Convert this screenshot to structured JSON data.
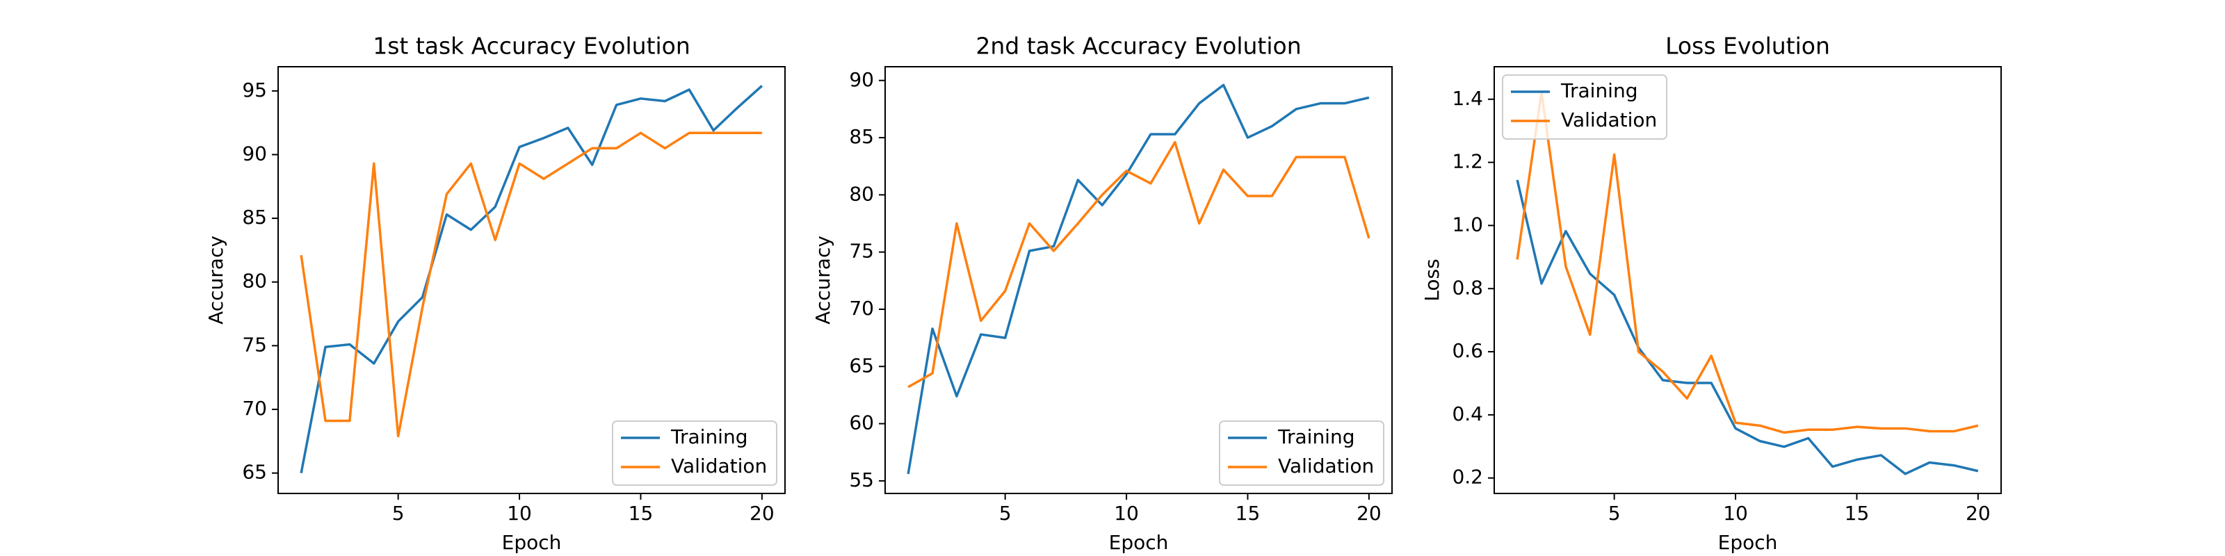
{
  "chart_data": [
    {
      "type": "line",
      "title": "1st task Accuracy Evolution",
      "x_label": "Epoch",
      "y_label": "Accuracy",
      "x": [
        1,
        2,
        3,
        4,
        5,
        6,
        7,
        8,
        9,
        10,
        11,
        12,
        13,
        14,
        15,
        16,
        17,
        18,
        19,
        20
      ],
      "series": [
        {
          "name": "Training",
          "color": "#1f77b4",
          "values": [
            65.0,
            74.9,
            75.1,
            73.6,
            76.9,
            78.8,
            85.3,
            84.1,
            85.9,
            90.6,
            91.3,
            92.1,
            89.2,
            93.9,
            94.4,
            94.2,
            95.1,
            91.9,
            93.7,
            95.4
          ]
        },
        {
          "name": "Validation",
          "color": "#ff7f0e",
          "values": [
            82.1,
            69.1,
            69.1,
            89.3,
            67.9,
            78.0,
            86.9,
            89.3,
            83.3,
            89.3,
            88.1,
            89.3,
            90.5,
            90.5,
            91.7,
            90.5,
            91.7,
            91.7,
            91.7,
            91.7
          ]
        }
      ],
      "xlim": [
        0.05,
        20.95
      ],
      "xticks": [
        5,
        10,
        15,
        20
      ],
      "ylim": [
        63.4,
        96.9
      ],
      "yticks": [
        65,
        70,
        75,
        80,
        85,
        90,
        95
      ],
      "legend": "lower right"
    },
    {
      "type": "line",
      "title": "2nd task Accuracy Evolution",
      "x_label": "Epoch",
      "y_label": "Accuracy",
      "x": [
        1,
        2,
        3,
        4,
        5,
        6,
        7,
        8,
        9,
        10,
        11,
        12,
        13,
        14,
        15,
        16,
        17,
        18,
        19,
        20
      ],
      "series": [
        {
          "name": "Training",
          "color": "#1f77b4",
          "values": [
            55.6,
            68.3,
            62.4,
            67.8,
            67.5,
            75.1,
            75.5,
            81.3,
            79.1,
            81.8,
            85.3,
            85.3,
            88.0,
            89.6,
            85.0,
            86.0,
            87.5,
            88.0,
            88.0,
            88.5
          ]
        },
        {
          "name": "Validation",
          "color": "#ff7f0e",
          "values": [
            63.2,
            64.4,
            77.5,
            69.0,
            71.6,
            77.5,
            75.1,
            77.5,
            80.0,
            82.1,
            81.0,
            84.6,
            77.5,
            82.2,
            79.9,
            79.9,
            83.3,
            83.3,
            83.3,
            76.2
          ]
        }
      ],
      "xlim": [
        0.05,
        20.95
      ],
      "xticks": [
        5,
        10,
        15,
        20
      ],
      "ylim": [
        53.9,
        91.2
      ],
      "yticks": [
        55,
        60,
        65,
        70,
        75,
        80,
        85,
        90
      ],
      "legend": "lower right"
    },
    {
      "type": "line",
      "title": "Loss Evolution",
      "x_label": "Epoch",
      "y_label": "Loss",
      "x": [
        1,
        2,
        3,
        4,
        5,
        6,
        7,
        8,
        9,
        10,
        11,
        12,
        13,
        14,
        15,
        16,
        17,
        18,
        19,
        20
      ],
      "series": [
        {
          "name": "Training",
          "color": "#1f77b4",
          "values": [
            1.144,
            0.816,
            0.982,
            0.847,
            0.78,
            0.613,
            0.51,
            0.501,
            0.501,
            0.357,
            0.317,
            0.299,
            0.326,
            0.236,
            0.258,
            0.272,
            0.213,
            0.249,
            0.24,
            0.222
          ]
        },
        {
          "name": "Validation",
          "color": "#ff7f0e",
          "values": [
            0.892,
            1.422,
            0.87,
            0.654,
            1.225,
            0.6,
            0.537,
            0.452,
            0.587,
            0.375,
            0.366,
            0.344,
            0.353,
            0.353,
            0.362,
            0.357,
            0.357,
            0.348,
            0.348,
            0.366
          ]
        }
      ],
      "xlim": [
        0.05,
        20.95
      ],
      "xticks": [
        5,
        10,
        15,
        20
      ],
      "ylim": [
        0.151,
        1.503
      ],
      "yticks": [
        0.2,
        0.4,
        0.6,
        0.8,
        {
          "value": 1.0,
          "label": "1.0"
        },
        1.2,
        1.4
      ],
      "legend": "upper left"
    }
  ]
}
